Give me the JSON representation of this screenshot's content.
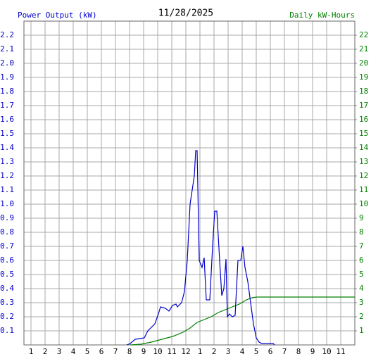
{
  "chart_data": {
    "type": "line",
    "title": "11/28/2025",
    "y_label": "Power Output (kW)",
    "y2_label": "Daily kW-Hours",
    "xlim": [
      0.5,
      24
    ],
    "xticks": [
      1,
      2,
      3,
      4,
      5,
      6,
      7,
      8,
      9,
      10,
      11,
      12,
      {
        "value": 13,
        "label": "1"
      },
      {
        "value": 14,
        "label": "2"
      },
      {
        "value": 15,
        "label": "3"
      },
      {
        "value": 16,
        "label": "4"
      },
      {
        "value": 17,
        "label": "5"
      },
      {
        "value": 18,
        "label": "6"
      },
      {
        "value": 19,
        "label": "7"
      },
      {
        "value": 20,
        "label": "8"
      },
      {
        "value": 21,
        "label": "9"
      },
      {
        "value": 22,
        "label": "10"
      },
      {
        "value": 23,
        "label": "11"
      }
    ],
    "ylim": [
      0,
      2.3
    ],
    "yticks": [
      0.1,
      0.2,
      0.3,
      0.4,
      0.5,
      0.6,
      0.7,
      0.8,
      0.9,
      {
        "value": 1,
        "label": "1.0"
      },
      1.1,
      1.2,
      1.3,
      1.4,
      1.5,
      1.6,
      1.7,
      1.8,
      1.9,
      {
        "value": 2,
        "label": "2.0"
      },
      2.1,
      2.2
    ],
    "y2lim": [
      0,
      23
    ],
    "y2ticks": [
      1,
      2,
      3,
      4,
      5,
      6,
      7,
      8,
      9,
      10,
      11,
      12,
      13,
      14,
      15,
      16,
      17,
      18,
      19,
      20,
      21,
      22
    ],
    "grid": true,
    "y_color": "#0000cc",
    "y2_color": "#008000",
    "series": [
      {
        "name": "Power Output (kW)",
        "color": "#0000cc",
        "x": [
          7.8,
          8.05,
          8.4,
          9.05,
          9.3,
          9.8,
          10.05,
          10.2,
          10.55,
          10.8,
          11.05,
          11.3,
          11.4,
          11.7,
          11.9,
          12.1,
          12.3,
          12.6,
          12.7,
          12.8,
          12.95,
          13.15,
          13.3,
          13.45,
          13.7,
          13.9,
          14.05,
          14.2,
          14.4,
          14.55,
          14.7,
          14.85,
          14.95,
          15.1,
          15.3,
          15.5,
          15.7,
          15.9,
          16.05,
          16.2,
          16.4,
          16.6,
          16.8,
          17.0,
          17.2,
          17.4,
          18.2,
          18.3
        ],
        "values": [
          0,
          0.01,
          0.04,
          0.05,
          0.1,
          0.15,
          0.22,
          0.27,
          0.26,
          0.24,
          0.28,
          0.29,
          0.27,
          0.3,
          0.38,
          0.6,
          1.0,
          1.2,
          1.38,
          1.38,
          0.6,
          0.55,
          0.62,
          0.32,
          0.32,
          0.7,
          0.95,
          0.95,
          0.6,
          0.35,
          0.4,
          0.61,
          0.2,
          0.22,
          0.2,
          0.21,
          0.6,
          0.6,
          0.7,
          0.55,
          0.45,
          0.3,
          0.15,
          0.05,
          0.02,
          0.01,
          0.01,
          0
        ]
      },
      {
        "name": "Daily kW-Hours",
        "color": "#008000",
        "axis": "y2",
        "x": [
          8.05,
          8.8,
          9.55,
          10.3,
          11.05,
          11.8,
          12.3,
          12.8,
          13.3,
          13.8,
          14.3,
          14.8,
          15.3,
          15.8,
          16.3,
          16.7,
          17.05,
          24
        ],
        "values": [
          0,
          0.05,
          0.2,
          0.4,
          0.6,
          0.9,
          1.2,
          1.6,
          1.8,
          2.0,
          2.3,
          2.5,
          2.7,
          2.9,
          3.2,
          3.35,
          3.4,
          3.4
        ]
      }
    ]
  }
}
